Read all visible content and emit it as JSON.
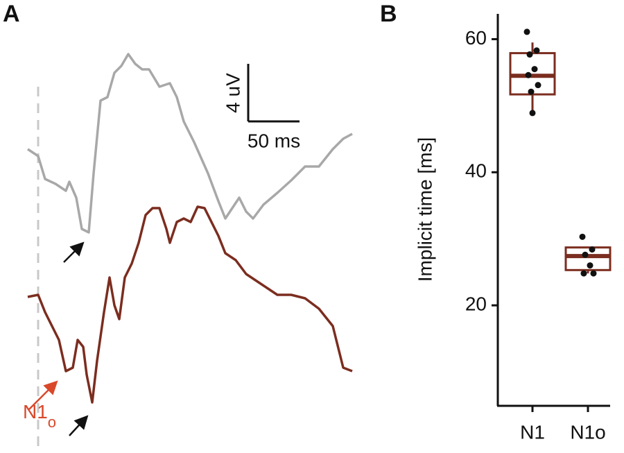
{
  "panel_a": {
    "label": "A",
    "scale_y": "4 uV",
    "scale_x": "50 ms",
    "marker": "N1",
    "marker_sub": "o"
  },
  "chart_data": {
    "type": "box",
    "panel_label": "B",
    "ylabel": "Implicit time [ms]",
    "categories": [
      "N1",
      "N1o"
    ],
    "color": "#7b2d1f",
    "point_color": "#111111",
    "ylim": [
      4.9,
      63.8
    ],
    "yticks": [
      20,
      40,
      60
    ],
    "boxes": [
      {
        "whisker_low": 48.9,
        "q1": 51.7,
        "median": 54.5,
        "q3": 57.9,
        "whisker_high": 59.5,
        "points": [
          61.1,
          58.3,
          57.7,
          55.5,
          54.6,
          53.1,
          52.1,
          48.9
        ]
      },
      {
        "whisker_low": 24.8,
        "q1": 25.3,
        "median": 27.4,
        "q3": 28.7,
        "whisker_high": 28.7,
        "points": [
          30.3,
          28.4,
          27.6,
          26.0,
          24.8,
          24.8
        ]
      }
    ]
  }
}
